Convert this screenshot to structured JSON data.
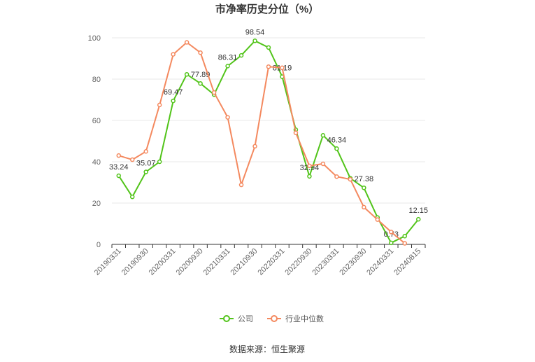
{
  "chart_data": {
    "type": "line",
    "title": "市净率历史分位（%）",
    "xlabel": "",
    "ylabel": "",
    "ylim": [
      0,
      100
    ],
    "yticks": [
      0,
      20,
      40,
      60,
      80,
      100
    ],
    "x": [
      "20190331",
      "20190630",
      "20190930",
      "20191231",
      "20200331",
      "20200630",
      "20200930",
      "20201231",
      "20210331",
      "20210630",
      "20210930",
      "20211231",
      "20220331",
      "20220630",
      "20220930",
      "20221231",
      "20230331",
      "20230630",
      "20230930",
      "20231231",
      "20240331",
      "20240630",
      "20240815"
    ],
    "xtick_labels": [
      "20190331",
      "20190930",
      "20200331",
      "20200930",
      "20210331",
      "20210930",
      "20220331",
      "20220930",
      "20230331",
      "20230930",
      "20240331",
      "20240815"
    ],
    "grid": true,
    "legend_position": "bottom",
    "series": [
      {
        "name": "公司",
        "color": "#52c41a",
        "values": [
          33.24,
          23.0,
          35.07,
          40.0,
          69.47,
          82.3,
          77.89,
          72.5,
          86.31,
          91.5,
          98.54,
          95.3,
          81.19,
          55.5,
          32.94,
          52.8,
          46.34,
          32.0,
          27.38,
          13.0,
          0.73,
          4.0,
          12.15
        ],
        "labels": [
          "33.24",
          "",
          "35.07",
          "",
          "69.47",
          "",
          "77.89",
          "",
          "86.31",
          "",
          "98.54",
          "",
          "81.19",
          "",
          "32.94",
          "",
          "46.34",
          "",
          "27.38",
          "",
          "0.73",
          "",
          "12.15"
        ]
      },
      {
        "name": "行业中位数",
        "color": "#f4895f",
        "values": [
          43.0,
          41.0,
          45.0,
          67.5,
          92.0,
          97.8,
          92.8,
          73.5,
          61.5,
          28.8,
          47.5,
          86.0,
          85.5,
          54.0,
          38.0,
          39.0,
          32.8,
          31.5,
          18.0,
          12.0,
          6.0,
          0.5,
          null
        ],
        "labels": []
      }
    ]
  },
  "source": "数据来源：恒生聚源"
}
